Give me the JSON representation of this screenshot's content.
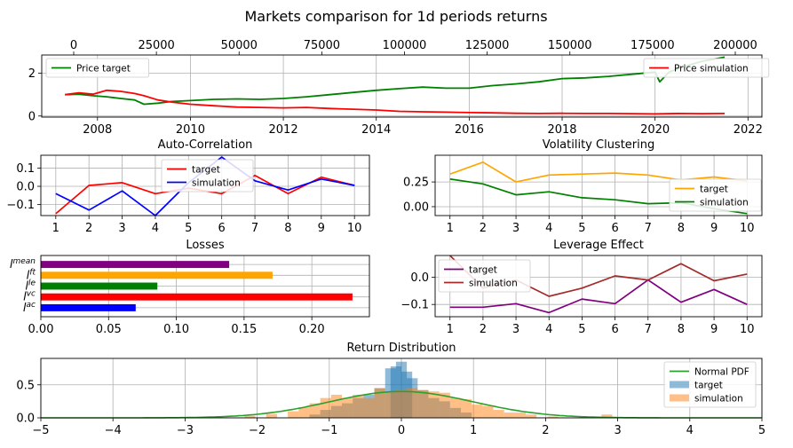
{
  "figure": {
    "title": "Markets comparison for 1d periods returns"
  },
  "chart_data": [
    {
      "id": "price",
      "type": "line",
      "x_top_ticks": [
        "0",
        "25000",
        "50000",
        "75000",
        "100000",
        "125000",
        "150000",
        "175000",
        "200000"
      ],
      "x_ticks": [
        "2008",
        "2010",
        "2012",
        "2014",
        "2016",
        "2018",
        "2020",
        "2022"
      ],
      "y_ticks": [
        "0",
        "2"
      ],
      "xlim": [
        2006.8,
        2022.3
      ],
      "ylim": [
        -0.05,
        2.85
      ],
      "grid": true,
      "series": [
        {
          "name": "Price target",
          "color": "#008000",
          "legend": "top-left",
          "x": [
            2007.3,
            2007.6,
            2007.9,
            2008.2,
            2008.5,
            2008.8,
            2009.0,
            2009.3,
            2009.6,
            2010.0,
            2010.5,
            2011.0,
            2011.5,
            2012.0,
            2012.5,
            2013.0,
            2013.5,
            2014.0,
            2014.5,
            2015.0,
            2015.5,
            2016.0,
            2016.5,
            2017.0,
            2017.5,
            2018.0,
            2018.5,
            2019.0,
            2019.5,
            2020.0,
            2020.1,
            2020.3,
            2020.6,
            2021.0,
            2021.5
          ],
          "y": [
            1.0,
            1.02,
            0.95,
            0.9,
            0.82,
            0.75,
            0.55,
            0.6,
            0.68,
            0.72,
            0.78,
            0.8,
            0.78,
            0.82,
            0.9,
            1.0,
            1.1,
            1.2,
            1.28,
            1.35,
            1.3,
            1.3,
            1.42,
            1.5,
            1.6,
            1.75,
            1.78,
            1.85,
            1.95,
            2.05,
            1.6,
            2.05,
            2.3,
            2.55,
            2.75
          ]
        },
        {
          "name": "Price simulation",
          "color": "#ff0000",
          "legend": "top-right",
          "x": [
            2007.3,
            2007.6,
            2007.9,
            2008.2,
            2008.5,
            2008.8,
            2009.0,
            2009.3,
            2009.6,
            2010.0,
            2010.5,
            2011.0,
            2011.5,
            2012.0,
            2012.5,
            2013.0,
            2013.5,
            2014.0,
            2014.5,
            2015.0,
            2015.5,
            2016.0,
            2016.5,
            2017.0,
            2017.5,
            2018.0,
            2018.5,
            2019.0,
            2019.5,
            2020.0,
            2020.5,
            2021.0,
            2021.5
          ],
          "y": [
            1.0,
            1.08,
            1.02,
            1.2,
            1.15,
            1.05,
            0.95,
            0.75,
            0.65,
            0.55,
            0.48,
            0.42,
            0.4,
            0.38,
            0.4,
            0.35,
            0.32,
            0.28,
            0.22,
            0.2,
            0.18,
            0.16,
            0.15,
            0.13,
            0.12,
            0.13,
            0.12,
            0.12,
            0.11,
            0.1,
            0.12,
            0.11,
            0.12
          ]
        }
      ]
    },
    {
      "id": "autocorr",
      "type": "line",
      "title": "Auto-Correlation",
      "x": [
        1,
        2,
        3,
        4,
        5,
        6,
        7,
        8,
        9,
        10
      ],
      "x_ticks": [
        "1",
        "2",
        "3",
        "4",
        "5",
        "6",
        "7",
        "8",
        "9",
        "10"
      ],
      "y_ticks": [
        "0.1",
        "0.0",
        "−0.1"
      ],
      "y_tick_values": [
        0.1,
        0.0,
        -0.1
      ],
      "xlim": [
        0.55,
        10.45
      ],
      "ylim": [
        -0.16,
        0.17
      ],
      "grid": true,
      "legend": "upper-center",
      "series": [
        {
          "name": "target",
          "color": "#ff0000",
          "values": [
            -0.15,
            0.005,
            0.02,
            -0.04,
            -0.01,
            -0.04,
            0.06,
            -0.04,
            0.05,
            0.005
          ]
        },
        {
          "name": "simulation",
          "color": "#0000ff",
          "values": [
            -0.04,
            -0.13,
            -0.025,
            -0.16,
            0.02,
            0.16,
            0.03,
            -0.02,
            0.04,
            0.005
          ]
        }
      ]
    },
    {
      "id": "volatility",
      "type": "line",
      "title": "Volatility Clustering",
      "x": [
        1,
        2,
        3,
        4,
        5,
        6,
        7,
        8,
        9,
        10
      ],
      "x_ticks": [
        "1",
        "2",
        "3",
        "4",
        "5",
        "6",
        "7",
        "8",
        "9",
        "10"
      ],
      "y_ticks": [
        "0.25",
        "0.00"
      ],
      "y_tick_values": [
        0.25,
        0.0
      ],
      "xlim": [
        0.55,
        10.45
      ],
      "ylim": [
        -0.09,
        0.52
      ],
      "grid": true,
      "legend": "lower-right",
      "series": [
        {
          "name": "target",
          "color": "#ffa500",
          "values": [
            0.33,
            0.45,
            0.25,
            0.32,
            0.33,
            0.34,
            0.32,
            0.27,
            0.3,
            0.26
          ]
        },
        {
          "name": "simulation",
          "color": "#008000",
          "values": [
            0.28,
            0.23,
            0.12,
            0.15,
            0.09,
            0.07,
            0.03,
            0.04,
            -0.02,
            -0.07
          ]
        }
      ]
    },
    {
      "id": "losses",
      "type": "bar",
      "orientation": "horizontal",
      "title": "Losses",
      "categories": [
        "l^ac",
        "l^vc",
        "l^le",
        "l^ft",
        "l^mean"
      ],
      "category_labels": [
        {
          "base": "l",
          "sup": "ac"
        },
        {
          "base": "l",
          "sup": "vc"
        },
        {
          "base": "l",
          "sup": "le"
        },
        {
          "base": "l",
          "sup": "ft"
        },
        {
          "base": "l",
          "sup": "mean"
        }
      ],
      "values": [
        0.07,
        0.23,
        0.086,
        0.171,
        0.139
      ],
      "colors": [
        "#0000ff",
        "#ff0000",
        "#008000",
        "#ffa500",
        "#800080"
      ],
      "x_ticks": [
        "0.00",
        "0.05",
        "0.10",
        "0.15",
        "0.20"
      ],
      "x_tick_values": [
        0.0,
        0.05,
        0.1,
        0.15,
        0.2
      ],
      "xlim": [
        0,
        0.2425
      ],
      "grid": true
    },
    {
      "id": "leverage",
      "type": "line",
      "title": "Leverage Effect",
      "x": [
        1,
        2,
        3,
        4,
        5,
        6,
        7,
        8,
        9,
        10
      ],
      "x_ticks": [
        "1",
        "2",
        "3",
        "4",
        "5",
        "6",
        "7",
        "8",
        "9",
        "10"
      ],
      "y_ticks": [
        "0.0",
        "−0.1"
      ],
      "y_tick_values": [
        0.0,
        -0.1
      ],
      "xlim": [
        0.55,
        10.45
      ],
      "ylim": [
        -0.145,
        0.08
      ],
      "grid": true,
      "legend": "upper-left",
      "series": [
        {
          "name": "target",
          "color": "#800080",
          "values": [
            -0.11,
            -0.11,
            -0.097,
            -0.13,
            -0.08,
            -0.097,
            -0.01,
            -0.092,
            -0.045,
            -0.1
          ]
        },
        {
          "name": "simulation",
          "color": "#a52a2a",
          "values": [
            0.08,
            -0.04,
            -0.01,
            -0.07,
            -0.04,
            0.005,
            -0.01,
            0.05,
            -0.013,
            0.012
          ]
        }
      ]
    },
    {
      "id": "returns",
      "type": "area",
      "title": "Return Distribution",
      "x_ticks": [
        "−5",
        "−4",
        "−3",
        "−2",
        "−1",
        "0",
        "1",
        "2",
        "3",
        "4",
        "5"
      ],
      "x_tick_values": [
        -5,
        -4,
        -3,
        -2,
        -1,
        0,
        1,
        2,
        3,
        4,
        5
      ],
      "y_ticks": [
        "0.0",
        "0.5"
      ],
      "y_tick_values": [
        0.0,
        0.5
      ],
      "xlim": [
        -5,
        5
      ],
      "ylim": [
        0,
        0.9
      ],
      "grid": true,
      "legend": "top-right",
      "bin_width": 0.075,
      "normal_pdf": {
        "name": "Normal PDF",
        "color": "#2ca02c",
        "mean": 0,
        "std": 1
      },
      "hist": [
        {
          "name": "target",
          "color": "#1f77b4",
          "x": [
            -1.2,
            -1.05,
            -0.9,
            -0.75,
            -0.6,
            -0.45,
            -0.3,
            -0.15,
            -0.075,
            0.0,
            0.075,
            0.15,
            0.3,
            0.45,
            0.6,
            0.75,
            0.9
          ],
          "y": [
            0.05,
            0.12,
            0.18,
            0.22,
            0.3,
            0.35,
            0.45,
            0.75,
            0.78,
            0.85,
            0.7,
            0.6,
            0.42,
            0.3,
            0.25,
            0.15,
            0.08
          ]
        },
        {
          "name": "simulation",
          "color": "#ff7f0e",
          "x": [
            -2.1,
            -1.8,
            -1.5,
            -1.35,
            -1.2,
            -1.05,
            -0.9,
            -0.75,
            -0.6,
            -0.45,
            -0.3,
            -0.15,
            0.0,
            0.15,
            0.3,
            0.45,
            0.6,
            0.75,
            0.9,
            1.05,
            1.2,
            1.35,
            1.5,
            1.65,
            1.8,
            2.1,
            2.85
          ],
          "y": [
            0.03,
            0.06,
            0.1,
            0.16,
            0.22,
            0.3,
            0.35,
            0.3,
            0.35,
            0.3,
            0.45,
            0.4,
            0.42,
            0.45,
            0.42,
            0.4,
            0.38,
            0.3,
            0.28,
            0.2,
            0.18,
            0.12,
            0.08,
            0.08,
            0.05,
            0.02,
            0.05
          ]
        }
      ]
    }
  ]
}
